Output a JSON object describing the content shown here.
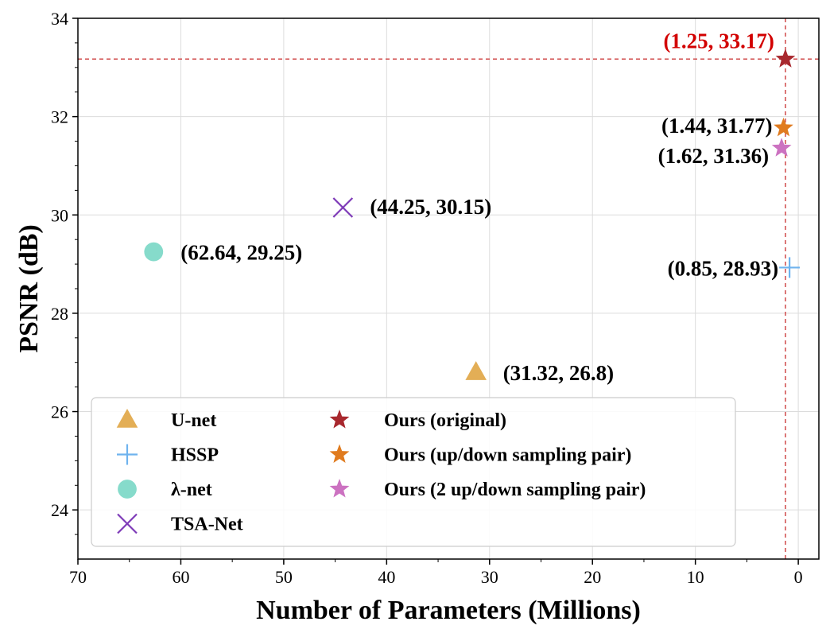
{
  "chart_data": {
    "type": "scatter",
    "xlabel": "Number of Parameters (Millions)",
    "ylabel": "PSNR (dB)",
    "xlim": [
      70,
      -2
    ],
    "ylim": [
      23,
      34
    ],
    "x_inverted": true,
    "grid": true,
    "legend_position": "lower-left",
    "x_ticks": [
      70,
      60,
      50,
      40,
      30,
      20,
      10,
      0
    ],
    "y_ticks": [
      24,
      26,
      28,
      30,
      32,
      34
    ],
    "x_tick_labels": [
      "70",
      "60",
      "50",
      "40",
      "30",
      "20",
      "10",
      "0"
    ],
    "y_tick_labels": [
      "24",
      "26",
      "28",
      "30",
      "32",
      "34"
    ],
    "series": [
      {
        "name": "U-net",
        "marker": "triangle",
        "color": "#e3ae56",
        "x": 31.32,
        "y": 26.8,
        "annotation": "(31.32, 26.8)",
        "annotation_color": "#000000"
      },
      {
        "name": "HSSP",
        "marker": "plus",
        "color": "#6fb3ee",
        "x": 0.85,
        "y": 28.93,
        "annotation": "(0.85, 28.93)",
        "annotation_color": "#000000"
      },
      {
        "name": "λ-net",
        "marker": "circle",
        "color": "#86dbcb",
        "x": 62.64,
        "y": 29.25,
        "annotation": "(62.64, 29.25)",
        "annotation_color": "#000000"
      },
      {
        "name": "TSA-Net",
        "marker": "x",
        "color": "#7e3bb8",
        "x": 44.25,
        "y": 30.15,
        "annotation": "(44.25, 30.15)",
        "annotation_color": "#000000"
      },
      {
        "name": "Ours (original)",
        "marker": "star",
        "color": "#a8282e",
        "x": 1.25,
        "y": 33.17,
        "annotation": "(1.25, 33.17)",
        "annotation_color": "#d20000"
      },
      {
        "name": "Ours (up/down sampling pair)",
        "marker": "star",
        "color": "#e07b1f",
        "x": 1.44,
        "y": 31.77,
        "annotation": "(1.44, 31.77)",
        "annotation_color": "#000000"
      },
      {
        "name": "Ours (2 up/down sampling pair)",
        "marker": "star",
        "color": "#cc72c1",
        "x": 1.62,
        "y": 31.36,
        "annotation": "(1.62, 31.36)",
        "annotation_color": "#000000"
      }
    ],
    "reference_lines": {
      "x": 1.25,
      "y": 33.17,
      "color": "#d04a4a",
      "style": "dashed"
    }
  }
}
